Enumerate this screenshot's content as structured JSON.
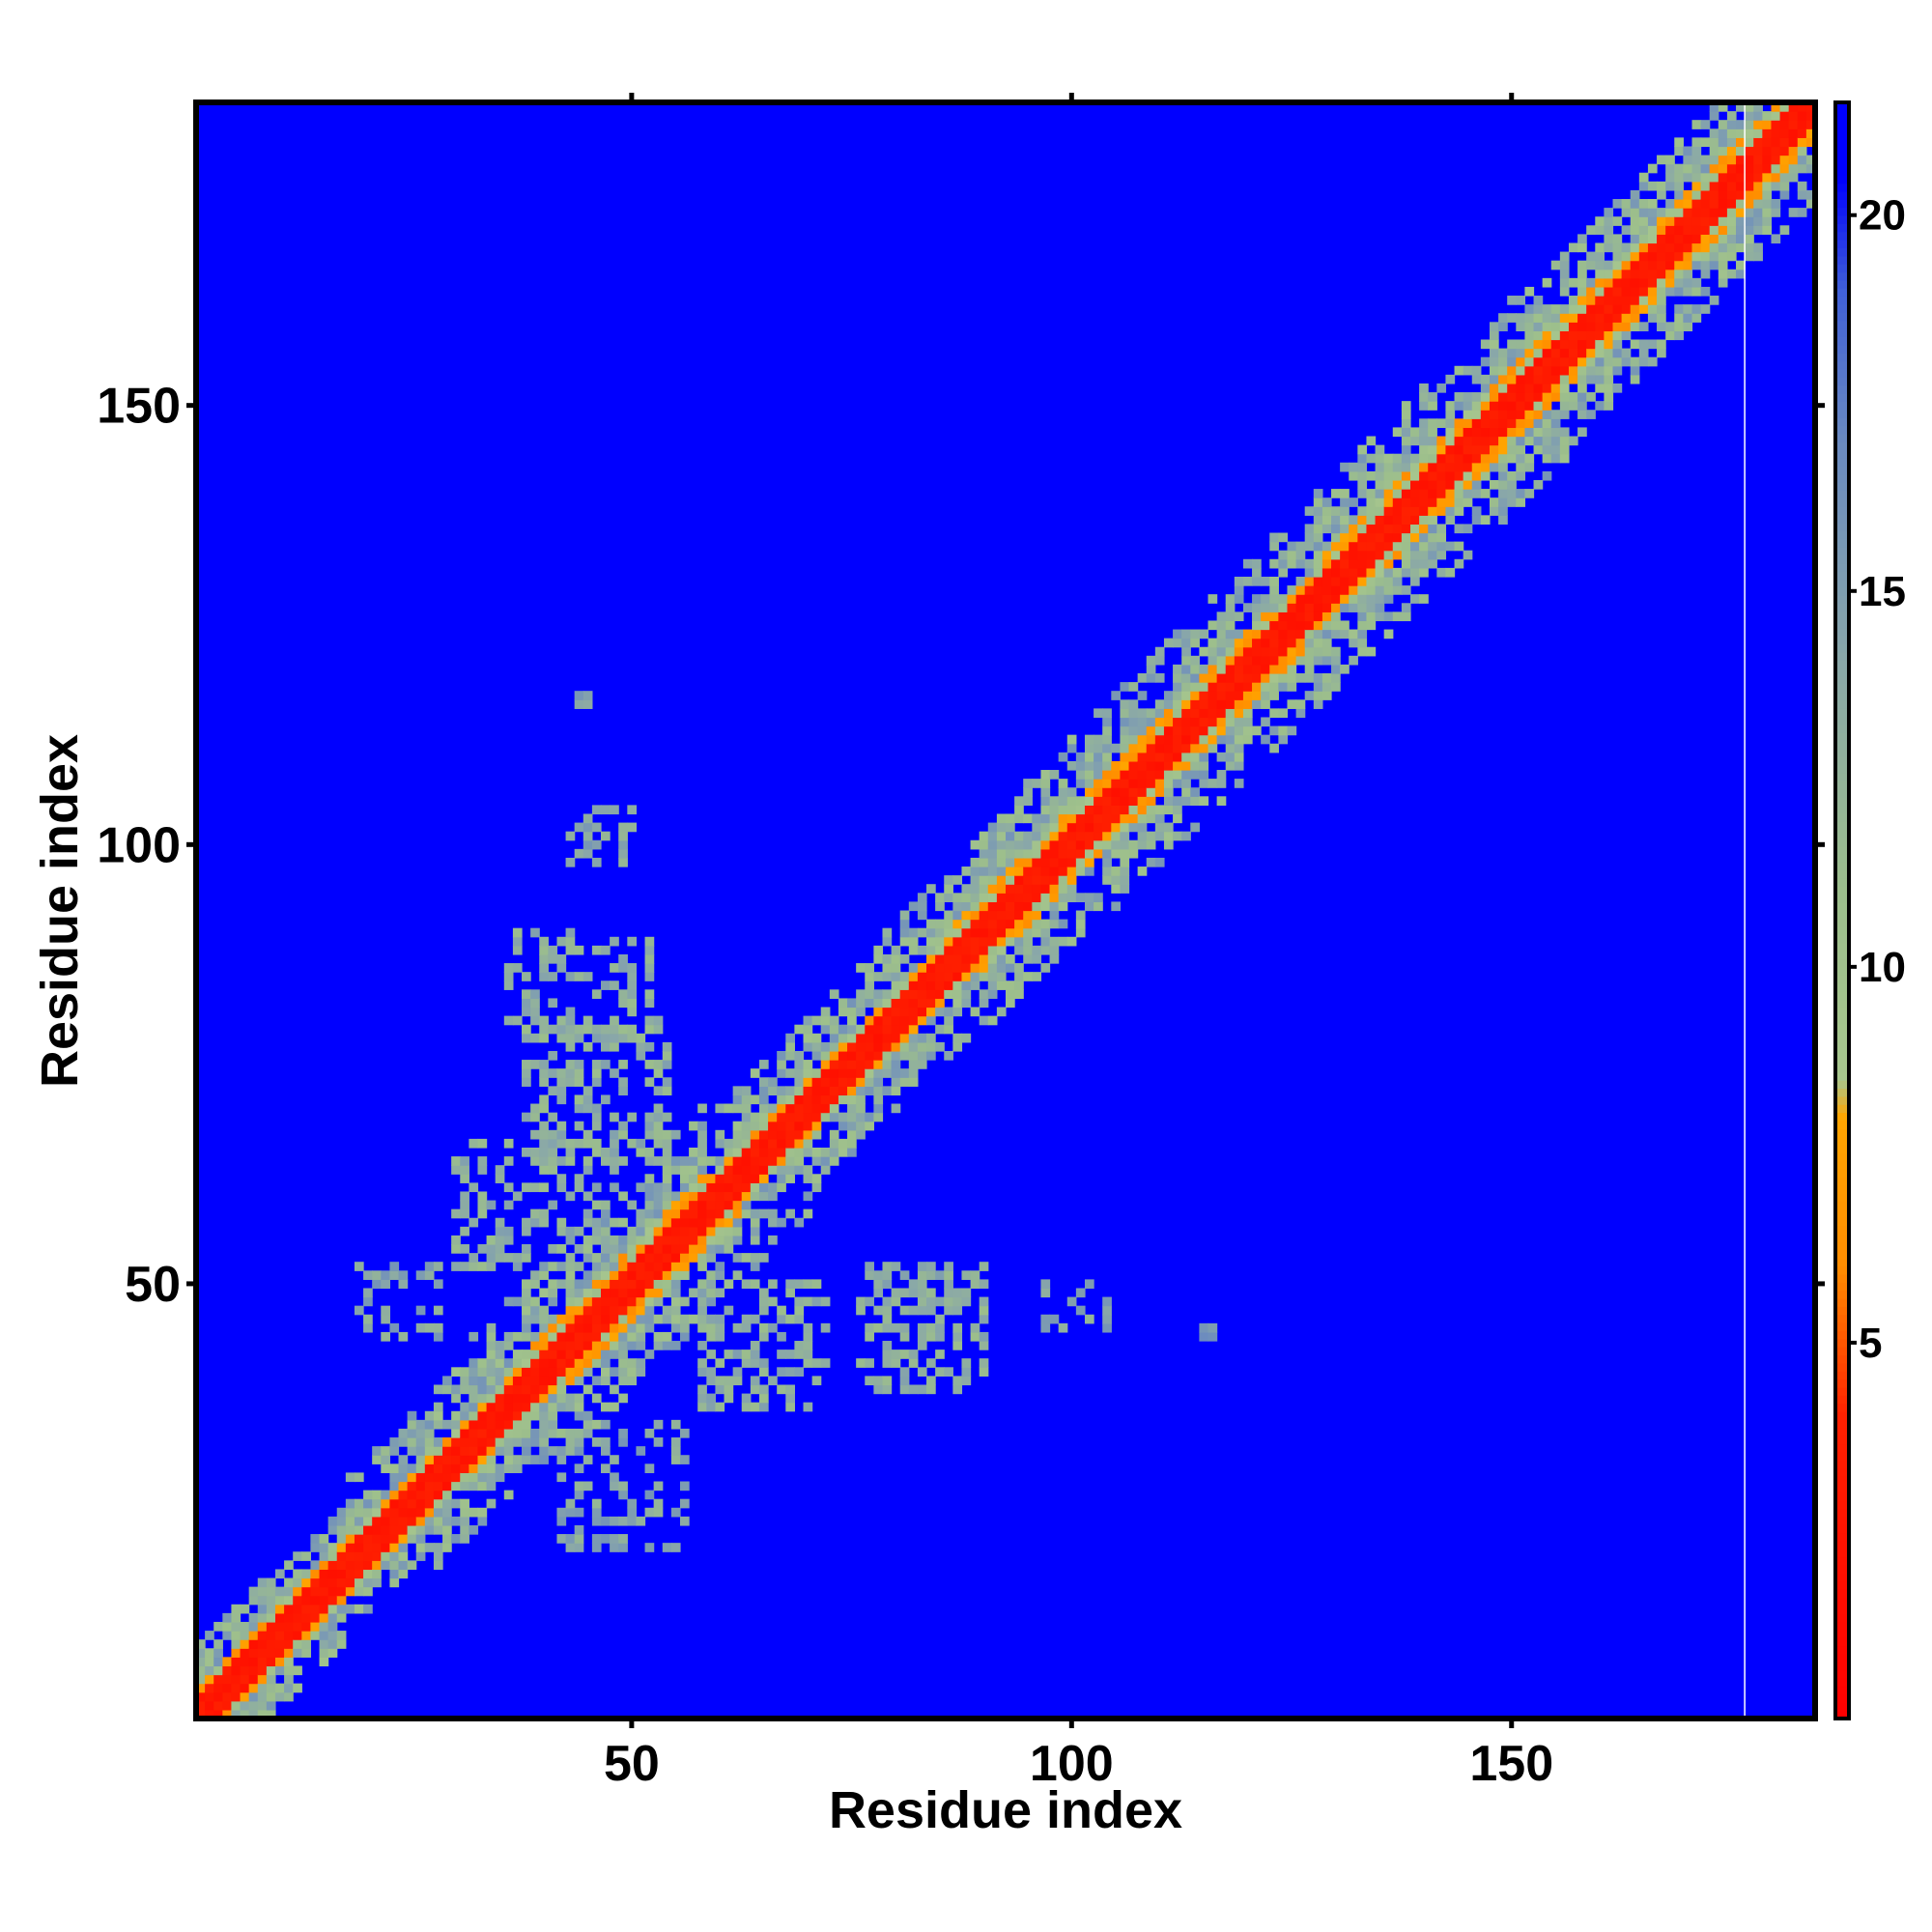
{
  "chart_data": {
    "type": "heatmap",
    "title": "",
    "xlabel": "Residue index",
    "ylabel": "Residue index",
    "xlim": [
      0.5,
      184.5
    ],
    "ylim": [
      0.5,
      184.5
    ],
    "n_residues": 184,
    "x_ticks": [
      50,
      100,
      150
    ],
    "y_ticks": [
      50,
      100,
      150
    ],
    "x_tick_labels": [
      "50",
      "100",
      "150"
    ],
    "y_tick_labels": [
      "50",
      "100",
      "150"
    ],
    "colorbar": {
      "range": [
        0,
        21.5
      ],
      "ticks": [
        5,
        10,
        15,
        20
      ],
      "tick_labels": [
        "5",
        "10",
        "15",
        "20"
      ],
      "stops": [
        {
          "value": 0,
          "color": "#ff0000"
        },
        {
          "value": 4,
          "color": "#ff2000"
        },
        {
          "value": 6,
          "color": "#ff8c00"
        },
        {
          "value": 8,
          "color": "#ffa500"
        },
        {
          "value": 8.5,
          "color": "#a8c78e"
        },
        {
          "value": 11,
          "color": "#9cbe8c"
        },
        {
          "value": 14,
          "color": "#8aa8a8"
        },
        {
          "value": 17,
          "color": "#6a8ac0"
        },
        {
          "value": 19,
          "color": "#4060d8"
        },
        {
          "value": 20.5,
          "color": "#0000ff"
        }
      ]
    },
    "background_value": 21,
    "background_color": "#0000ff",
    "diagonal_band": {
      "red_halfwidth": 2,
      "orange_halfwidth": 3,
      "green_halfwidth": 7
    },
    "band_widening": [
      {
        "from": 1,
        "to": 10,
        "extra": 1
      },
      {
        "from": 28,
        "to": 42,
        "extra": 3
      },
      {
        "from": 42,
        "to": 58,
        "extra": 5
      },
      {
        "from": 70,
        "to": 82,
        "extra": 3
      },
      {
        "from": 90,
        "to": 100,
        "extra": 4
      },
      {
        "from": 105,
        "to": 122,
        "extra": 5
      },
      {
        "from": 132,
        "to": 150,
        "extra": 5
      },
      {
        "from": 155,
        "to": 184,
        "extra": 4
      }
    ],
    "offdiagonal_clusters": [
      {
        "x": [
          38,
          54
        ],
        "y": [
          64,
          80
        ],
        "value": 12,
        "density": 0.45
      },
      {
        "x": [
          36,
          52
        ],
        "y": [
          78,
          90
        ],
        "value": 12,
        "density": 0.4
      },
      {
        "x": [
          43,
          50
        ],
        "y": [
          98,
          104
        ],
        "value": 13,
        "density": 0.3
      },
      {
        "x": [
          30,
          48
        ],
        "y": [
          52,
          66
        ],
        "value": 12,
        "density": 0.4
      },
      {
        "x": [
          42,
          56
        ],
        "y": [
          20,
          34
        ],
        "value": 13,
        "density": 0.35
      },
      {
        "x": [
          58,
          72
        ],
        "y": [
          36,
          50
        ],
        "value": 12,
        "density": 0.4
      },
      {
        "x": [
          76,
          90
        ],
        "y": [
          38,
          52
        ],
        "value": 12,
        "density": 0.5
      },
      {
        "x": [
          97,
          104
        ],
        "y": [
          45,
          50
        ],
        "value": 13,
        "density": 0.3
      },
      {
        "x": [
          19,
          28
        ],
        "y": [
          44,
          52
        ],
        "value": 13,
        "density": 0.35
      },
      {
        "x": [
          44,
          45
        ],
        "y": [
          116,
          117
        ],
        "value": 14,
        "density": 1.0
      },
      {
        "x": [
          115,
          116
        ],
        "y": [
          44,
          45
        ],
        "value": 14,
        "density": 1.0
      }
    ],
    "white_gridline_x": 176.5,
    "grid": false,
    "legend": "colorbar-right"
  }
}
